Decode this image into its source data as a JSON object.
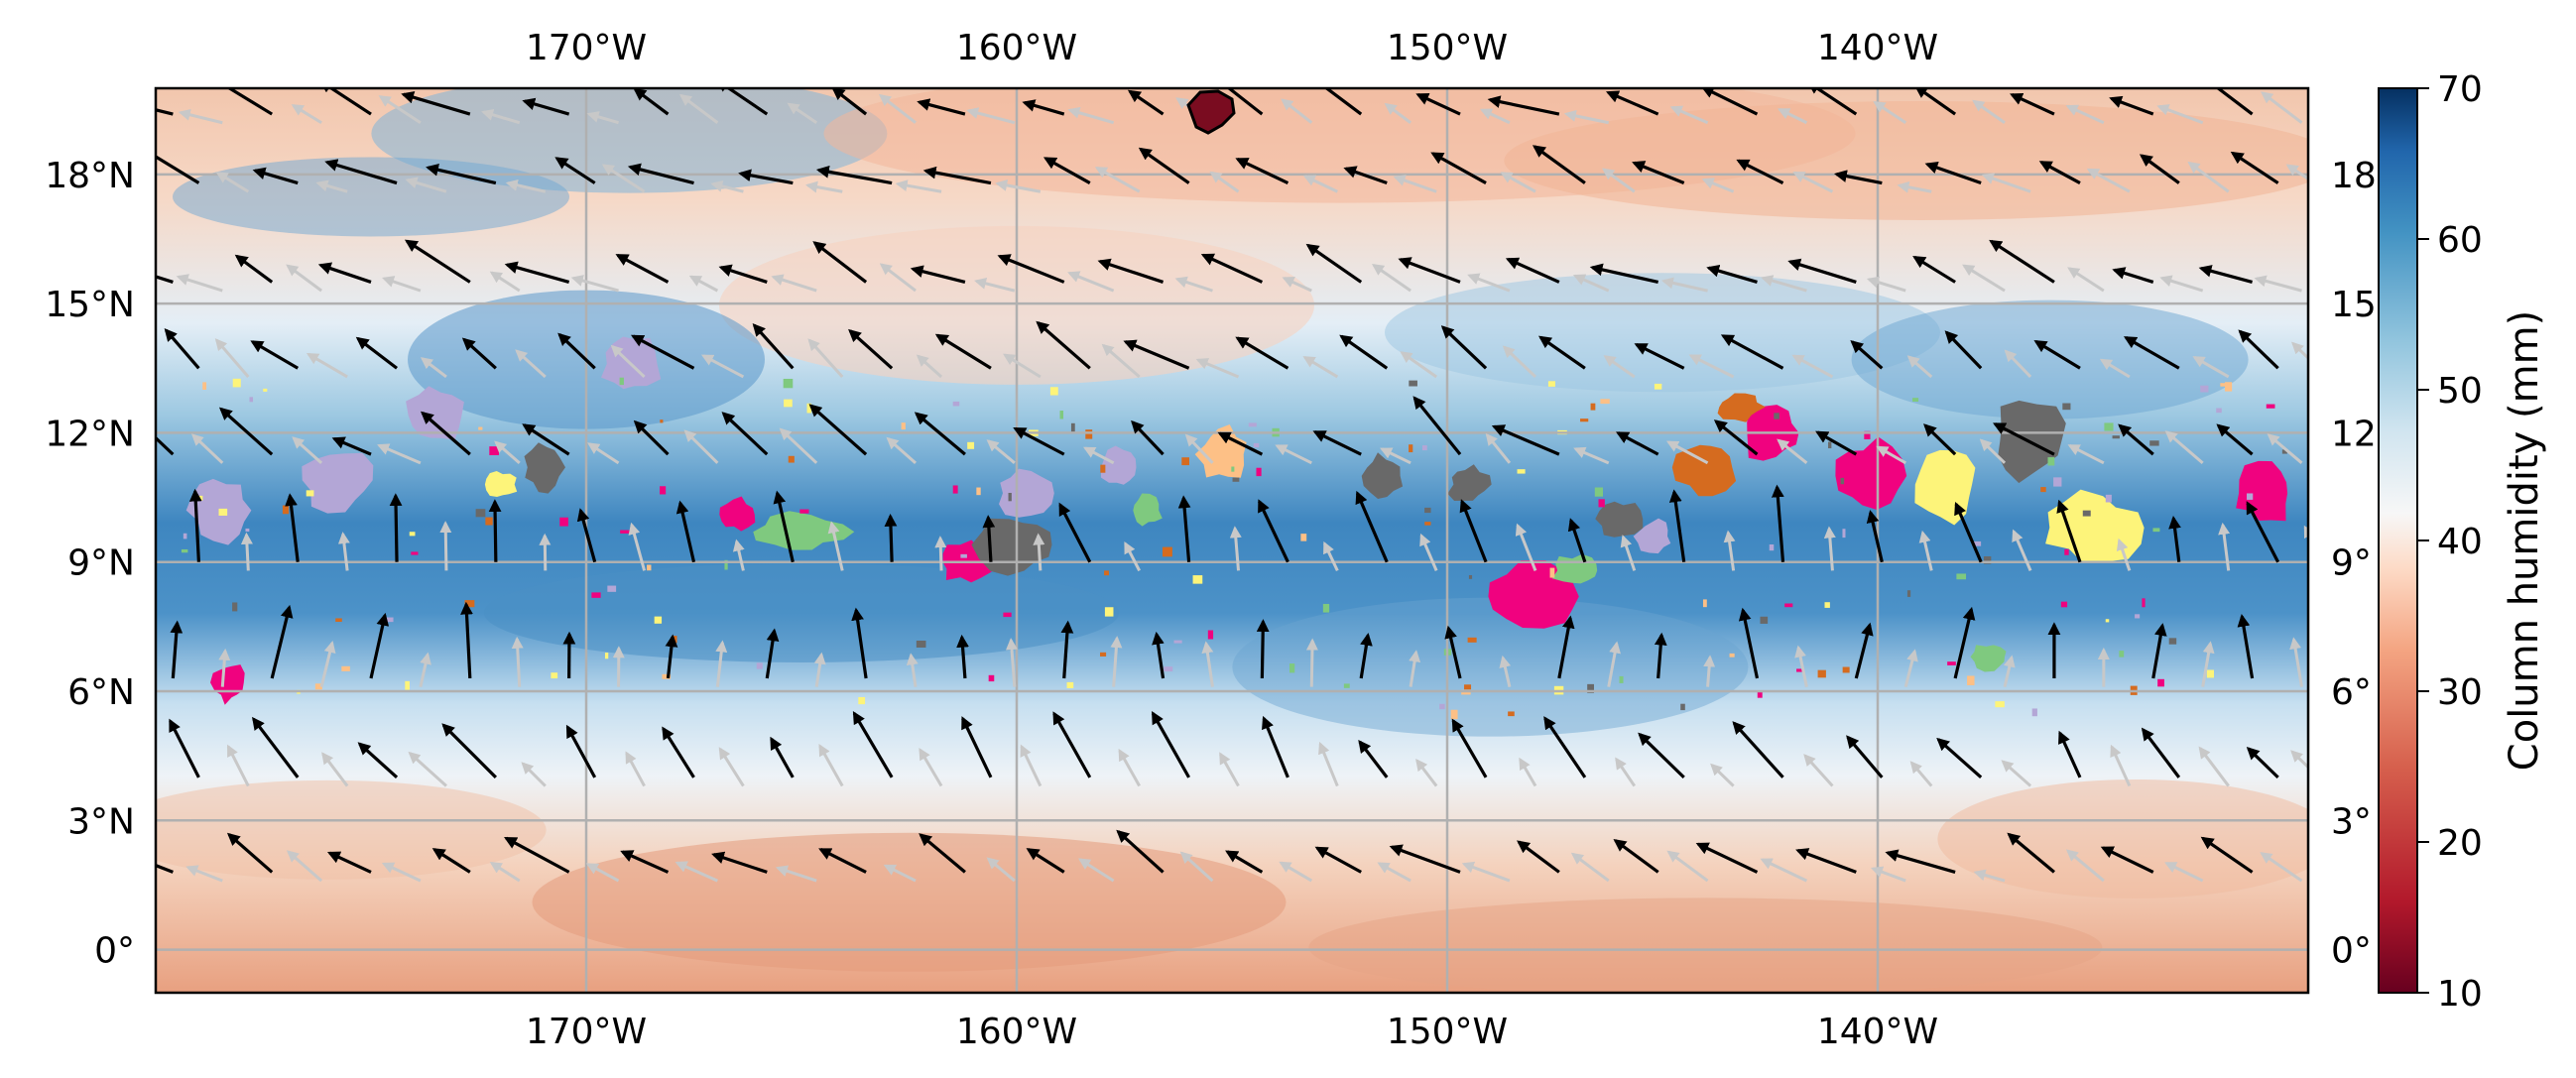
{
  "map": {
    "lon_range": [
      -180,
      -130
    ],
    "lat_range": [
      -1,
      20
    ],
    "lon_ticks": [
      {
        "value": -170,
        "label": "170°W"
      },
      {
        "value": -160,
        "label": "160°W"
      },
      {
        "value": -150,
        "label": "150°W"
      },
      {
        "value": -140,
        "label": "140°W"
      }
    ],
    "lat_ticks": [
      {
        "value": 0,
        "label": "0°"
      },
      {
        "value": 3,
        "label": "3°N"
      },
      {
        "value": 6,
        "label": "6°N"
      },
      {
        "value": 9,
        "label": "9°N"
      },
      {
        "value": 12,
        "label": "12°N"
      },
      {
        "value": 15,
        "label": "15°N"
      },
      {
        "value": 18,
        "label": "18°N"
      }
    ],
    "right_lat_labels_partial": [
      {
        "value": 0,
        "label": "0°"
      },
      {
        "value": 3,
        "label": "3°"
      },
      {
        "value": 6,
        "label": "6°"
      },
      {
        "value": 9,
        "label": "9°"
      },
      {
        "value": 12,
        "label": "12"
      },
      {
        "value": 15,
        "label": "15"
      },
      {
        "value": 18,
        "label": "18"
      }
    ],
    "gridlines": true,
    "field_colormap": "RdBu",
    "field_colors": {
      "dry": "#b2182b",
      "mid": "#f7f7f7",
      "moist": "#2166ac"
    },
    "wind_arrow_color": "#000000",
    "background_arrow_color": "#c8c8c8",
    "cluster_colors": [
      "#b3a6d6",
      "#696969",
      "#fdf47a",
      "#7fc97f",
      "#f0027f",
      "#fdc086",
      "#d56b1f"
    ]
  },
  "colorbar": {
    "label": "Column humidity (mm)",
    "range": [
      10,
      70
    ],
    "ticks": [
      {
        "value": 10,
        "label": "10"
      },
      {
        "value": 20,
        "label": "20"
      },
      {
        "value": 30,
        "label": "30"
      },
      {
        "value": 40,
        "label": "40"
      },
      {
        "value": 50,
        "label": "50"
      },
      {
        "value": 60,
        "label": "60"
      },
      {
        "value": 70,
        "label": "70"
      }
    ]
  }
}
